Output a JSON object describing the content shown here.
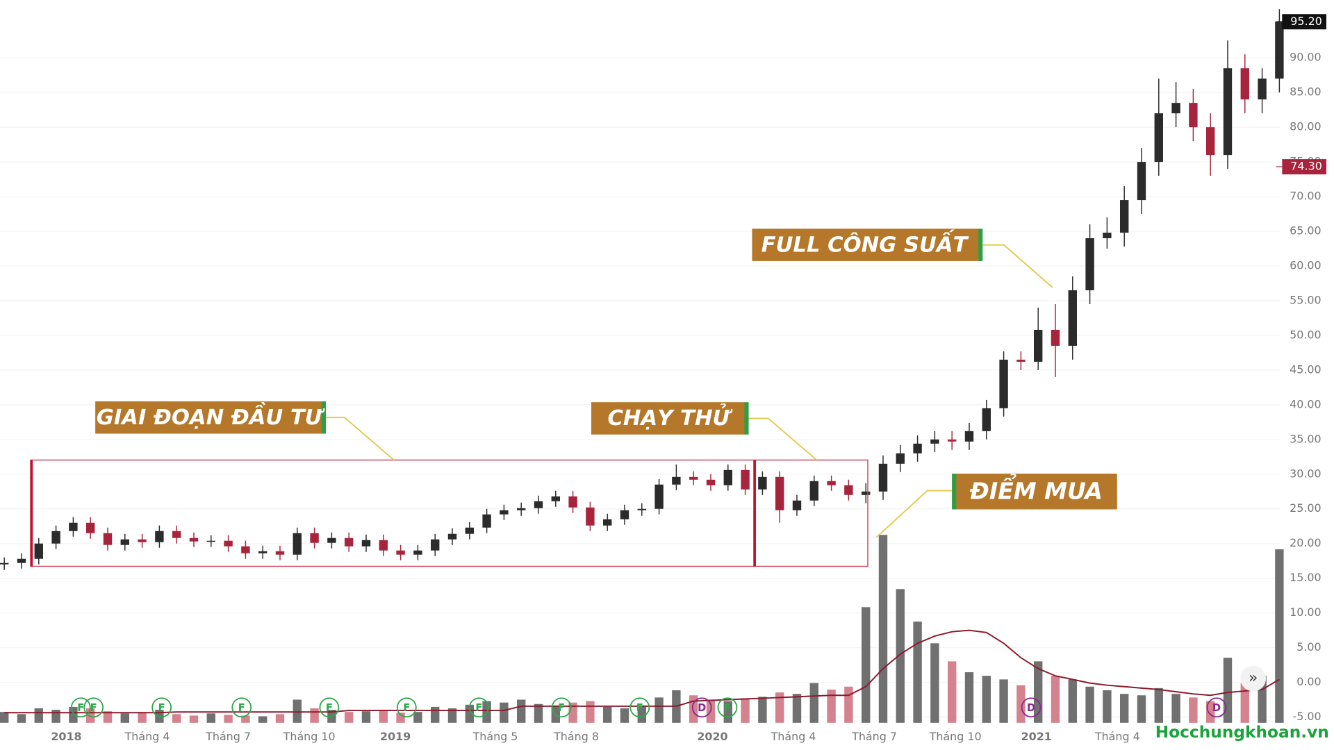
{
  "chart_data": {
    "type": "candlestick",
    "open": [
      17.0,
      17.2,
      17.8,
      20.0,
      21.8,
      23.0,
      21.5,
      19.8,
      20.6,
      20.2,
      21.8,
      20.8,
      20.3,
      20.4,
      19.6,
      18.6,
      18.9,
      18.4,
      21.5,
      20.1,
      20.8,
      19.6,
      20.5,
      19.0,
      18.4,
      19.0,
      20.6,
      21.4,
      22.3,
      24.2,
      24.8,
      25.1,
      26.1,
      26.8,
      25.2,
      22.6,
      23.5,
      24.8,
      25.0,
      28.5,
      29.6,
      29.2,
      28.4,
      30.6,
      27.8,
      29.6,
      24.8,
      26.2,
      29.0,
      28.4,
      27.0,
      27.5,
      31.5,
      33.0,
      34.4,
      35.0,
      34.7,
      36.2,
      39.5,
      46.5,
      46.2,
      50.8,
      48.5,
      56.5,
      64.0,
      64.8,
      69.5,
      75.0,
      82.0,
      83.5,
      80.0,
      76.0,
      88.5,
      84.0,
      87.0
    ],
    "high": [
      18.0,
      18.6,
      20.8,
      22.6,
      23.8,
      23.8,
      22.3,
      21.4,
      21.4,
      22.6,
      22.6,
      21.6,
      21.2,
      21.2,
      20.4,
      19.7,
      19.7,
      22.3,
      22.3,
      21.6,
      21.6,
      21.3,
      21.3,
      19.8,
      19.8,
      21.4,
      22.2,
      23.1,
      25.0,
      25.6,
      25.9,
      26.9,
      27.6,
      27.6,
      26.0,
      24.3,
      25.6,
      25.8,
      29.3,
      31.4,
      30.4,
      30.0,
      31.4,
      31.4,
      30.4,
      30.4,
      27.0,
      29.8,
      29.8,
      29.2,
      28.7,
      32.7,
      34.2,
      35.6,
      36.2,
      36.2,
      37.4,
      40.7,
      47.7,
      47.7,
      54.0,
      54.5,
      58.5,
      66.0,
      67.0,
      71.5,
      77.0,
      87.0,
      86.5,
      85.5,
      82.0,
      92.5,
      90.5,
      88.5,
      97.0
    ],
    "low": [
      16.2,
      16.4,
      17.0,
      19.2,
      21.0,
      20.7,
      19.0,
      19.0,
      19.4,
      19.4,
      20.0,
      19.5,
      19.5,
      18.8,
      17.8,
      17.8,
      17.6,
      17.6,
      19.3,
      19.3,
      18.8,
      18.8,
      18.2,
      17.6,
      17.6,
      18.2,
      19.8,
      20.6,
      21.5,
      23.4,
      24.0,
      24.3,
      25.3,
      24.4,
      21.8,
      21.8,
      22.7,
      24.0,
      24.2,
      27.7,
      28.4,
      27.6,
      27.6,
      27.0,
      27.0,
      23.0,
      24.0,
      25.4,
      27.6,
      26.2,
      25.8,
      26.3,
      30.3,
      31.8,
      33.2,
      33.5,
      33.5,
      35.0,
      38.3,
      45.0,
      45.0,
      44.0,
      46.5,
      54.5,
      62.5,
      62.8,
      67.5,
      73.0,
      80.0,
      78.0,
      73.0,
      74.0,
      82.0,
      82.0,
      85.0
    ],
    "close": [
      17.2,
      17.8,
      20.0,
      21.8,
      23.0,
      21.5,
      19.8,
      20.6,
      20.2,
      21.8,
      20.8,
      20.3,
      20.4,
      19.6,
      18.6,
      18.9,
      18.4,
      21.5,
      20.1,
      20.8,
      19.6,
      20.5,
      19.0,
      18.4,
      19.0,
      20.6,
      21.4,
      22.3,
      24.2,
      24.8,
      25.1,
      26.1,
      26.8,
      25.2,
      22.6,
      23.5,
      24.8,
      25.0,
      28.5,
      29.6,
      29.2,
      28.4,
      30.6,
      27.8,
      29.6,
      24.8,
      26.2,
      29.0,
      28.4,
      27.0,
      27.5,
      31.5,
      33.0,
      34.4,
      35.0,
      34.7,
      36.2,
      39.5,
      46.5,
      46.2,
      50.8,
      48.5,
      56.5,
      64.0,
      64.8,
      69.5,
      75.0,
      82.0,
      83.5,
      80.0,
      76.0,
      88.5,
      84.0,
      87.0,
      95.2
    ],
    "volume": [
      1.5,
      1.2,
      2.0,
      1.8,
      2.2,
      2.0,
      1.6,
      1.3,
      1.5,
      1.8,
      1.2,
      1.0,
      1.3,
      1.1,
      1.0,
      0.9,
      1.2,
      3.2,
      2.0,
      1.8,
      1.5,
      1.6,
      1.8,
      1.4,
      1.5,
      2.2,
      2.0,
      2.5,
      3.0,
      2.8,
      3.2,
      2.6,
      2.4,
      2.8,
      3.0,
      2.2,
      2.0,
      2.4,
      3.5,
      4.5,
      3.8,
      3.2,
      3.0,
      3.4,
      3.6,
      4.2,
      4.0,
      5.5,
      4.6,
      5.0,
      16.0,
      26.0,
      18.5,
      14.0,
      11.0,
      8.5,
      7.0,
      6.5,
      6.0,
      5.2,
      8.5,
      6.5,
      6.0,
      5.0,
      4.5,
      4.0,
      3.8,
      4.8,
      4.0,
      3.5,
      3.0,
      9.0,
      5.5,
      6.5,
      24.0
    ],
    "volume_ma": [
      1.4,
      1.4,
      1.4,
      1.4,
      1.4,
      1.4,
      1.4,
      1.4,
      1.4,
      1.4,
      1.5,
      1.5,
      1.5,
      1.5,
      1.5,
      1.5,
      1.5,
      1.5,
      1.5,
      1.5,
      1.7,
      1.7,
      1.7,
      1.7,
      1.7,
      1.7,
      1.7,
      1.7,
      1.7,
      1.7,
      2.3,
      2.3,
      2.3,
      2.3,
      2.3,
      2.3,
      2.3,
      2.3,
      2.3,
      2.3,
      3.0,
      3.1,
      3.2,
      3.3,
      3.4,
      3.5,
      3.6,
      3.7,
      3.8,
      3.8,
      5.0,
      7.5,
      9.5,
      11.0,
      12.0,
      12.6,
      12.8,
      12.5,
      11.0,
      9.0,
      7.5,
      6.5,
      6.0,
      5.5,
      5.2,
      5.0,
      4.8,
      4.6,
      4.3,
      4.0,
      3.8,
      4.2,
      4.4,
      4.6,
      6.0
    ],
    "up_color": "#2b2b2b",
    "down_color": "#a8243c",
    "volume_up_color": "#707070",
    "volume_down_color": "#d4828e",
    "ma_color": "#8b1a2b",
    "xlim": [
      -0.25,
      74.8
    ],
    "ylim": [
      -5.83,
      98.33
    ],
    "y2lim": [
      0,
      100
    ],
    "grid": true,
    "xticks": [
      {
        "value": 3.6,
        "label": "2018"
      },
      {
        "value": 8.3,
        "label": "Tháng 4"
      },
      {
        "value": 13.0,
        "label": "Tháng 7"
      },
      {
        "value": 17.7,
        "label": "Tháng 10"
      },
      {
        "value": 22.7,
        "label": "2019"
      },
      {
        "value": 28.5,
        "label": "Tháng 5"
      },
      {
        "value": 33.2,
        "label": "Tháng 8"
      },
      {
        "value": 41.1,
        "label": "2020"
      },
      {
        "value": 45.8,
        "label": "Tháng 4"
      },
      {
        "value": 50.5,
        "label": "Tháng 7"
      },
      {
        "value": 55.2,
        "label": "Tháng 10"
      },
      {
        "value": 59.9,
        "label": "2021"
      },
      {
        "value": 64.6,
        "label": "Tháng 4"
      }
    ],
    "yticks": [
      {
        "value": -5,
        "label": "-5.00"
      },
      {
        "value": 0,
        "label": "0.00"
      },
      {
        "value": 5,
        "label": "5.00"
      },
      {
        "value": 10,
        "label": "10.00"
      },
      {
        "value": 15,
        "label": "15.00"
      },
      {
        "value": 20,
        "label": "20.00"
      },
      {
        "value": 25,
        "label": "25.00"
      },
      {
        "value": 30,
        "label": "30.00"
      },
      {
        "value": 35,
        "label": "35.00"
      },
      {
        "value": 40,
        "label": "40.00"
      },
      {
        "value": 45,
        "label": "45.00"
      },
      {
        "value": 50,
        "label": "50.00"
      },
      {
        "value": 55,
        "label": "55.00"
      },
      {
        "value": 60,
        "label": "60.00"
      },
      {
        "value": 65,
        "label": "65.00"
      },
      {
        "value": 70,
        "label": "70.00"
      },
      {
        "value": 75,
        "label": "75.00"
      },
      {
        "value": 80,
        "label": "80.00"
      },
      {
        "value": 85,
        "label": "85.00"
      },
      {
        "value": 90,
        "label": "90.00"
      }
    ],
    "price_labels": [
      {
        "value": 95.2,
        "label": "95.20",
        "color": "#111111"
      },
      {
        "value": 74.3,
        "label": "74.30",
        "color": "#a8243c"
      }
    ],
    "annotations": [
      "GIAI ĐOẠN ĐẦU TƯ",
      "CHẠY THỬ",
      "FULL CÔNG SUẤT",
      "ĐIỂM MUA"
    ],
    "events": [
      "F",
      "F",
      "F",
      "F",
      "F",
      "F",
      "F",
      "F",
      "F",
      "D",
      "F",
      "D",
      "D"
    ],
    "scroll_button": "»",
    "logo": "Hocchungkhoan.vn"
  }
}
